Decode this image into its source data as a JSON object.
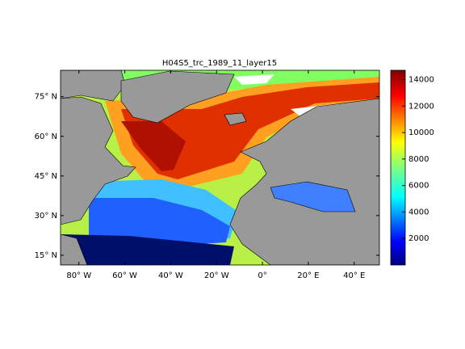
{
  "title": "H04S5_trc_1989_11_layer15",
  "map": {
    "xlim": [
      -88,
      51
    ],
    "ylim": [
      11.3,
      85
    ],
    "xticks": [
      {
        "value": -80,
        "label": "80° W"
      },
      {
        "value": -60,
        "label": "60° W"
      },
      {
        "value": -40,
        "label": "40° W"
      },
      {
        "value": -20,
        "label": "20° W"
      },
      {
        "value": 0,
        "label": "0°"
      },
      {
        "value": 20,
        "label": "20° E"
      },
      {
        "value": 40,
        "label": "40° E"
      }
    ],
    "yticks": [
      {
        "value": 15,
        "label": "15° N"
      },
      {
        "value": 30,
        "label": "30° N"
      },
      {
        "value": 45,
        "label": "45° N"
      },
      {
        "value": 60,
        "label": "60° N"
      },
      {
        "value": 75,
        "label": "75° N"
      }
    ]
  },
  "colorbar": {
    "clim": [
      0,
      14700
    ],
    "ticks": [
      2000,
      4000,
      6000,
      8000,
      10000,
      12000,
      14000
    ]
  }
}
